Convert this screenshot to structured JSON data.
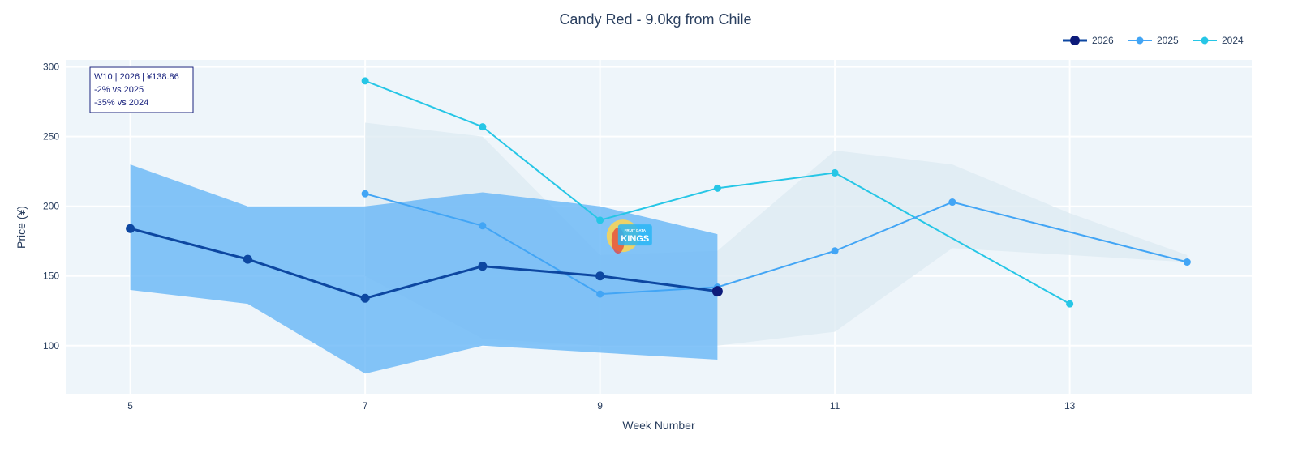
{
  "chart_data": {
    "type": "line",
    "title": "Candy Red - 9.0kg from Chile",
    "xlabel": "Week Number",
    "ylabel": "Price (¥)",
    "xlim": [
      4.45,
      14.55
    ],
    "ylim": [
      65,
      305
    ],
    "xticks": [
      5,
      7,
      9,
      11,
      13
    ],
    "yticks": [
      100,
      150,
      200,
      250,
      300
    ],
    "grid": true,
    "legend_position": "top-right",
    "series": [
      {
        "name": "2026",
        "color": "#0d47a1",
        "x": [
          5,
          6,
          7,
          8,
          9,
          10
        ],
        "values": [
          184,
          162,
          134,
          157,
          150,
          139
        ],
        "band_color": "#64b5f6",
        "band_x": [
          5,
          6,
          7,
          8,
          9,
          10
        ],
        "band_upper": [
          230,
          200,
          200,
          210,
          200,
          180
        ],
        "band_lower": [
          140,
          130,
          80,
          100,
          95,
          90
        ]
      },
      {
        "name": "2025",
        "color": "#42a5f5",
        "x": [
          7,
          8,
          9,
          10,
          11,
          12,
          14
        ],
        "values": [
          209,
          186,
          137,
          142,
          168,
          203,
          160
        ],
        "band_color": "#dce9f2",
        "band_x": [
          7,
          8,
          9,
          10,
          11,
          12,
          13,
          14
        ],
        "band_upper": [
          260,
          250,
          165,
          168,
          240,
          230,
          195,
          165
        ],
        "band_lower": [
          150,
          105,
          100,
          100,
          110,
          170,
          165,
          160
        ]
      },
      {
        "name": "2024",
        "color": "#26c6e6",
        "x": [
          7,
          8,
          9,
          10,
          11,
          13
        ],
        "values": [
          290,
          257,
          190,
          213,
          224,
          130
        ]
      }
    ],
    "annotation": {
      "lines": [
        "W10 | 2026 | ¥138.86",
        "-2% vs 2025",
        "-35% vs 2024"
      ]
    },
    "logo_text": "FRUIT DATA KINGS",
    "plot_bg": "#eef5fa"
  }
}
